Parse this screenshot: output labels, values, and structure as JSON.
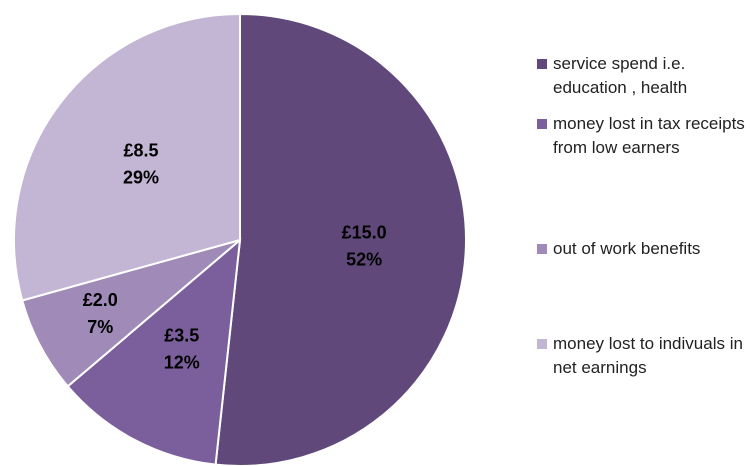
{
  "chart_data": {
    "type": "pie",
    "categories": [
      "service spend i.e. education , health",
      "money lost in tax receipts from low earners",
      "out of work benefits",
      "money lost to indivuals in net earnings"
    ],
    "values": [
      15.0,
      3.5,
      2.0,
      8.5
    ],
    "value_labels": [
      "£15.0",
      "£3.5",
      "£2.0",
      "£8.5"
    ],
    "percentages": [
      52,
      12,
      7,
      29
    ],
    "percentage_labels": [
      "52%",
      "12%",
      "7%",
      "29%"
    ],
    "colors": [
      "#60497a",
      "#7b5f9d",
      "#9f8ab8",
      "#c3b6d4"
    ],
    "legend": "right"
  }
}
